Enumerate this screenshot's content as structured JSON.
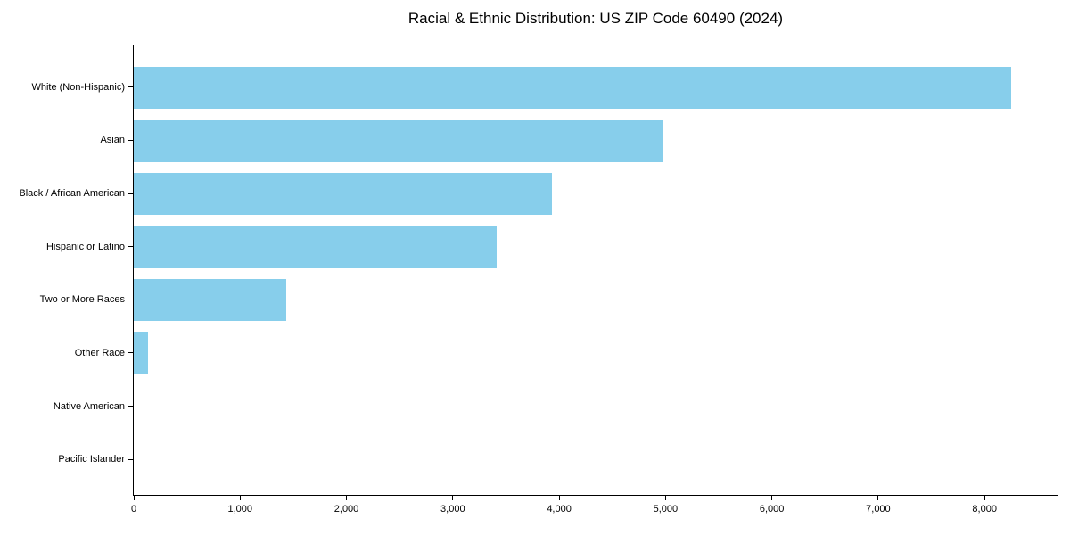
{
  "figure": {
    "background": "#ffffff",
    "axis_color": "#000000",
    "text_color": "#000000"
  },
  "chart_data": {
    "type": "bar",
    "orientation": "horizontal",
    "title": "Racial & Ethnic Distribution: US ZIP Code 60490 (2024)",
    "categories": [
      "White (Non-Hispanic)",
      "Asian",
      "Black / African American",
      "Hispanic or Latino",
      "Two or More Races",
      "Other Race",
      "Native American",
      "Pacific Islander"
    ],
    "values": [
      8250,
      4970,
      3935,
      3415,
      1435,
      130,
      0,
      0
    ],
    "xlabel": "",
    "ylabel": "",
    "xlim": [
      0,
      8686
    ],
    "xticks": [
      0,
      1000,
      2000,
      3000,
      4000,
      5000,
      6000,
      7000,
      8000
    ],
    "xtick_labels": [
      "0",
      "1,000",
      "2,000",
      "3,000",
      "4,000",
      "5,000",
      "6,000",
      "7,000",
      "8,000"
    ],
    "bar_color": "#87CEEB",
    "grid": false,
    "legend": "none"
  }
}
